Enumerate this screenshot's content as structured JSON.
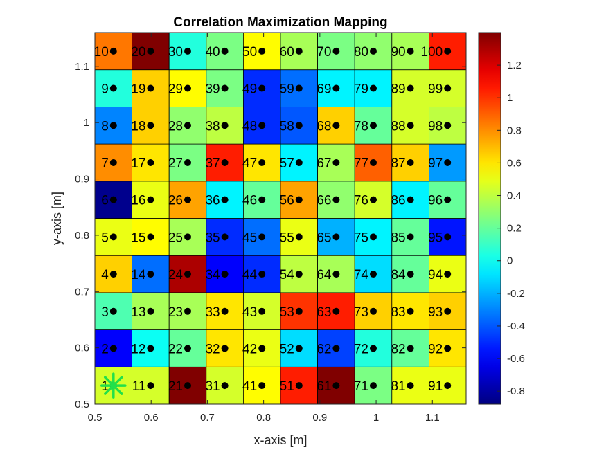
{
  "chart_data": {
    "type": "heatmap",
    "title": "Correlation Maximization Mapping",
    "xlabel": "x-axis [m]",
    "ylabel": "y-axis [m]",
    "xlim": [
      0.5,
      1.16
    ],
    "ylim": [
      0.5,
      1.16
    ],
    "xticks": [
      "0.5",
      "0.6",
      "0.7",
      "0.8",
      "0.9",
      "1",
      "1.1"
    ],
    "yticks": [
      "0.5",
      "0.6",
      "0.7",
      "0.8",
      "0.9",
      "1",
      "1.1"
    ],
    "xtick_values": [
      0.5,
      0.6,
      0.7,
      0.8,
      0.9,
      1.0,
      1.1
    ],
    "ytick_values": [
      0.5,
      0.6,
      0.7,
      0.8,
      0.9,
      1.0,
      1.1
    ],
    "grid_size": [
      10,
      10
    ],
    "cell_width": 0.066,
    "cell_height": 0.066,
    "point_x": [
      0.533,
      0.599,
      0.665,
      0.731,
      0.797,
      0.863,
      0.929,
      0.995,
      1.061,
      1.127
    ],
    "point_y": [
      0.533,
      0.599,
      0.665,
      0.731,
      0.797,
      0.863,
      0.929,
      0.995,
      1.061,
      1.127
    ],
    "colorbar": {
      "range": [
        -0.88,
        1.4
      ],
      "ticks": [
        "-0.8",
        "-0.6",
        "-0.4",
        "-0.2",
        "0",
        "0.2",
        "0.4",
        "0.6",
        "0.8",
        "1",
        "1.2"
      ],
      "tick_values": [
        -0.8,
        -0.6,
        -0.4,
        -0.2,
        0,
        0.2,
        0.4,
        0.6,
        0.8,
        1.0,
        1.2
      ],
      "colormap": "jet"
    },
    "point_labels": [
      "1",
      "2",
      "3",
      "4",
      "5",
      "6",
      "7",
      "8",
      "9",
      "10",
      "11",
      "12",
      "13",
      "14",
      "15",
      "16",
      "17",
      "18",
      "19",
      "20",
      "21",
      "22",
      "23",
      "24",
      "25",
      "26",
      "27",
      "28",
      "29",
      "30",
      "31",
      "32",
      "33",
      "34",
      "35",
      "36",
      "37",
      "38",
      "39",
      "40",
      "41",
      "42",
      "43",
      "44",
      "45",
      "46",
      "47",
      "48",
      "49",
      "50",
      "51",
      "52",
      "53",
      "54",
      "55",
      "56",
      "57",
      "58",
      "59",
      "60",
      "61",
      "62",
      "63",
      "64",
      "65",
      "66",
      "67",
      "68",
      "69",
      "70",
      "71",
      "72",
      "73",
      "74",
      "75",
      "76",
      "77",
      "78",
      "79",
      "80",
      "81",
      "82",
      "83",
      "84",
      "85",
      "86",
      "87",
      "88",
      "89",
      "90",
      "91",
      "92",
      "93",
      "94",
      "95",
      "96",
      "97",
      "98",
      "99",
      "100"
    ],
    "values_by_point": [
      0.45,
      -0.6,
      0.15,
      0.65,
      0.5,
      -0.85,
      0.8,
      -0.3,
      0.05,
      0.85,
      0.45,
      0.0,
      0.35,
      -0.35,
      0.55,
      0.5,
      0.6,
      0.65,
      0.65,
      1.4,
      1.4,
      0.2,
      0.35,
      1.3,
      0.35,
      0.75,
      0.25,
      0.3,
      0.55,
      0.05,
      0.45,
      0.6,
      0.6,
      -0.6,
      -0.5,
      -0.05,
      1.05,
      0.4,
      0.25,
      0.25,
      0.55,
      0.5,
      0.45,
      -0.5,
      -0.35,
      0.2,
      0.6,
      -0.5,
      -0.5,
      0.55,
      1.05,
      -0.1,
      1.0,
      0.4,
      0.5,
      0.75,
      -0.05,
      -0.4,
      -0.35,
      0.35,
      1.4,
      -0.45,
      1.05,
      0.35,
      -0.2,
      0.3,
      0.35,
      0.65,
      -0.05,
      0.25,
      0.25,
      0.05,
      0.65,
      -0.1,
      -0.05,
      0.45,
      0.9,
      0.2,
      -0.05,
      0.3,
      0.5,
      0.2,
      0.6,
      0.2,
      0.2,
      -0.05,
      0.65,
      0.45,
      0.45,
      0.35,
      0.5,
      0.6,
      0.65,
      0.5,
      -0.55,
      0.2,
      -0.25,
      0.4,
      0.45,
      1.05
    ],
    "marker_colors": {
      "point": "#000000",
      "best": "#22e04a",
      "grid_line": "#000000"
    },
    "best_point_label": "1"
  }
}
